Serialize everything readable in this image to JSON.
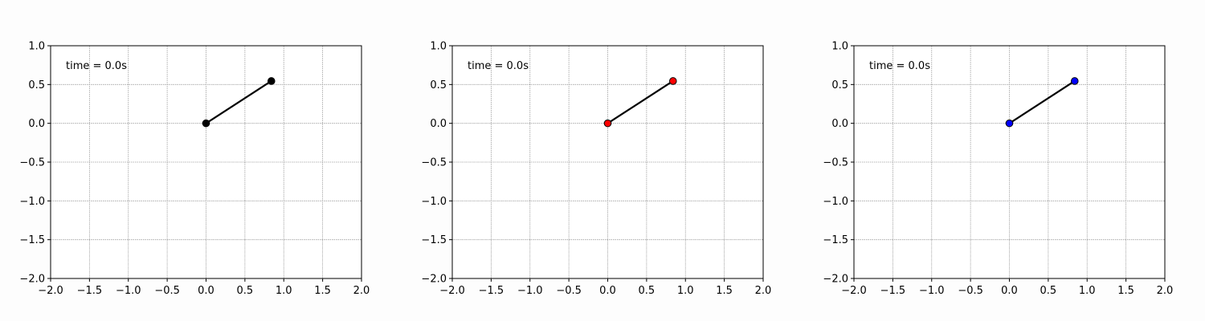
{
  "chart_data": [
    {
      "type": "line",
      "time_label": "time = 0.0s",
      "xlim": [
        -2.0,
        2.0
      ],
      "ylim": [
        -2.0,
        1.0
      ],
      "xticks": [
        -2.0,
        -1.5,
        -1.0,
        -0.5,
        0.0,
        0.5,
        1.0,
        1.5,
        2.0
      ],
      "yticks": [
        1.0,
        0.5,
        0.0,
        -0.5,
        -1.0,
        -1.5,
        -2.0
      ],
      "xtick_labels": [
        "−2.0",
        "−1.5",
        "−1.0",
        "−0.5",
        "0.0",
        "0.5",
        "1.0",
        "1.5",
        "2.0"
      ],
      "ytick_labels": [
        "1.0",
        "0.5",
        "0.0",
        "−0.5",
        "−1.0",
        "−1.5",
        "−2.0"
      ],
      "grid": true,
      "series": [
        {
          "x": [
            0.0,
            0.84
          ],
          "y": [
            0.0,
            0.545
          ],
          "line_color": "#000000",
          "marker_color": "#000000"
        }
      ]
    },
    {
      "type": "line",
      "time_label": "time = 0.0s",
      "xlim": [
        -2.0,
        2.0
      ],
      "ylim": [
        -2.0,
        1.0
      ],
      "xticks": [
        -2.0,
        -1.5,
        -1.0,
        -0.5,
        0.0,
        0.5,
        1.0,
        1.5,
        2.0
      ],
      "yticks": [
        1.0,
        0.5,
        0.0,
        -0.5,
        -1.0,
        -1.5,
        -2.0
      ],
      "xtick_labels": [
        "−2.0",
        "−1.5",
        "−1.0",
        "−0.5",
        "0.0",
        "0.5",
        "1.0",
        "1.5",
        "2.0"
      ],
      "ytick_labels": [
        "1.0",
        "0.5",
        "0.0",
        "−0.5",
        "−1.0",
        "−1.5",
        "−2.0"
      ],
      "grid": true,
      "series": [
        {
          "x": [
            0.0,
            0.84
          ],
          "y": [
            0.0,
            0.545
          ],
          "line_color": "#000000",
          "marker_color": "#ff0000"
        }
      ]
    },
    {
      "type": "line",
      "time_label": "time = 0.0s",
      "xlim": [
        -2.0,
        2.0
      ],
      "ylim": [
        -2.0,
        1.0
      ],
      "xticks": [
        -2.0,
        -1.5,
        -1.0,
        -0.5,
        0.0,
        0.5,
        1.0,
        1.5,
        2.0
      ],
      "yticks": [
        1.0,
        0.5,
        0.0,
        -0.5,
        -1.0,
        -1.5,
        -2.0
      ],
      "xtick_labels": [
        "−2.0",
        "−1.5",
        "−1.0",
        "−0.5",
        "0.0",
        "0.5",
        "1.0",
        "1.5",
        "2.0"
      ],
      "ytick_labels": [
        "1.0",
        "0.5",
        "0.0",
        "−0.5",
        "−1.0",
        "−1.5",
        "−2.0"
      ],
      "grid": true,
      "series": [
        {
          "x": [
            0.0,
            0.84
          ],
          "y": [
            0.0,
            0.545
          ],
          "line_color": "#000000",
          "marker_color": "#0000ff"
        }
      ]
    }
  ]
}
